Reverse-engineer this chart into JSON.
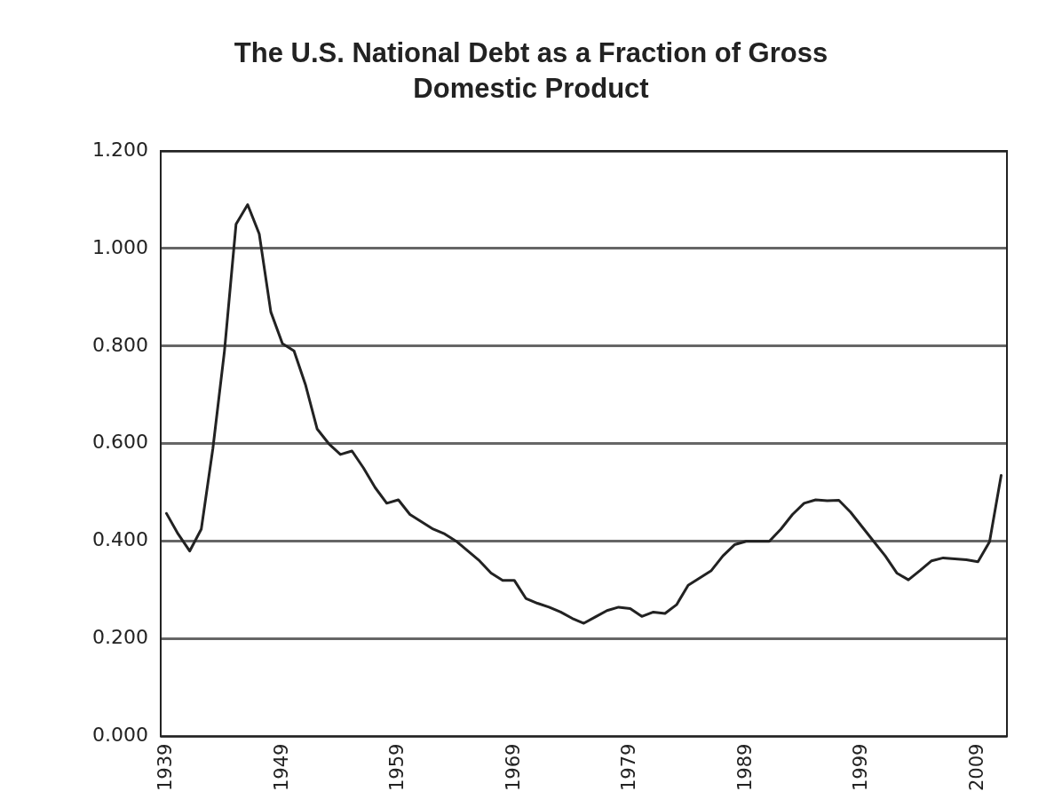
{
  "chart_data": {
    "type": "line",
    "title": "The U.S. National Debt as a Fraction of Gross Domestic Product",
    "categories": [
      "1939",
      null,
      null,
      null,
      null,
      null,
      null,
      null,
      null,
      null,
      "1949",
      null,
      null,
      null,
      null,
      null,
      null,
      null,
      null,
      null,
      "1959",
      null,
      null,
      null,
      null,
      null,
      null,
      null,
      null,
      null,
      "1969",
      null,
      null,
      null,
      null,
      null,
      null,
      null,
      null,
      null,
      "1979",
      null,
      null,
      null,
      null,
      null,
      null,
      null,
      null,
      null,
      "1989",
      null,
      null,
      null,
      null,
      null,
      null,
      null,
      null,
      null,
      "1999",
      null,
      null,
      null,
      null,
      null,
      null,
      null,
      null,
      null,
      "2009",
      null,
      null
    ],
    "series": [
      {
        "color": "#222222",
        "values": [
          0.457,
          0.415,
          0.38,
          0.425,
          0.59,
          0.79,
          1.05,
          1.09,
          1.03,
          0.87,
          0.805,
          0.79,
          0.72,
          0.63,
          0.6,
          0.578,
          0.585,
          0.55,
          0.51,
          0.478,
          0.485,
          0.455,
          0.44,
          0.425,
          0.415,
          0.4,
          0.38,
          0.36,
          0.335,
          0.32,
          0.32,
          0.283,
          0.273,
          0.265,
          0.255,
          0.242,
          0.232,
          0.245,
          0.258,
          0.265,
          0.262,
          0.246,
          0.255,
          0.252,
          0.27,
          0.31,
          0.325,
          0.34,
          0.37,
          0.393,
          0.4,
          0.4,
          0.4,
          0.425,
          0.455,
          0.478,
          0.485,
          0.483,
          0.484,
          0.46,
          0.43,
          0.4,
          0.37,
          0.335,
          0.321,
          0.34,
          0.36,
          0.366,
          0.364,
          0.362,
          0.358,
          0.399,
          0.535
        ]
      }
    ],
    "ylim": [
      0,
      1.2
    ],
    "yticks": [
      {
        "value": 0,
        "label": "0.000"
      },
      {
        "value": 0.2,
        "label": "0.200"
      },
      {
        "value": 0.4,
        "label": "0.400"
      },
      {
        "value": 0.6,
        "label": "0.600"
      },
      {
        "value": 0.8,
        "label": "0.800"
      },
      {
        "value": 1,
        "label": "1.000"
      },
      {
        "value": 1.2,
        "label": "1.200"
      }
    ],
    "grid": "y",
    "legend": false,
    "marker": "none",
    "line_style": "solid"
  }
}
